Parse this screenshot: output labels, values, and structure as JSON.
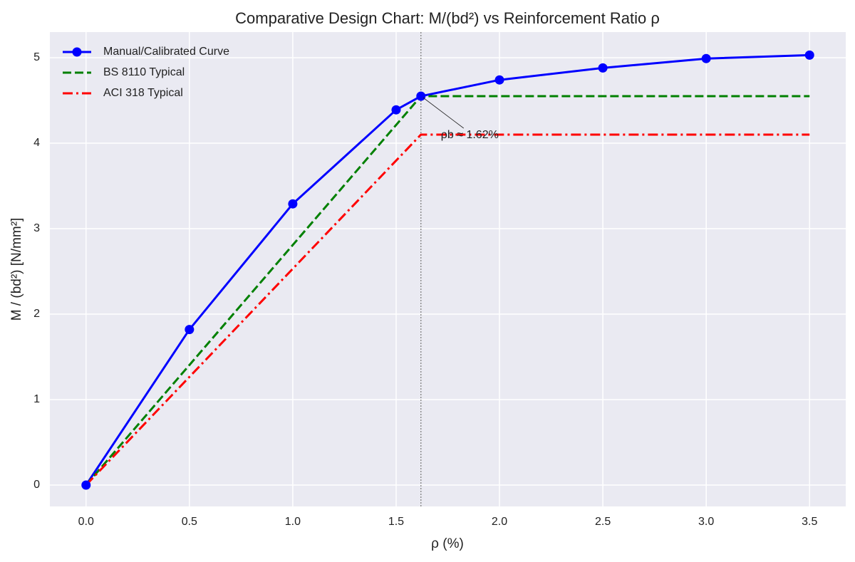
{
  "chart_data": {
    "type": "line",
    "title": "Comparative Design Chart: M/(bd²) vs Reinforcement Ratio ρ",
    "x_label": "ρ (%)",
    "y_label": "M / (bd²)  [N/mm²]",
    "series": [
      {
        "name": "Manual/Calibrated Curve",
        "color": "#0000ff",
        "linestyle": "solid",
        "marker": "o",
        "x": [
          0,
          0.5,
          1,
          1.5,
          1.62,
          2,
          2.5,
          3,
          3.5
        ],
        "values": [
          0,
          1.82,
          3.29,
          4.39,
          4.55,
          4.74,
          4.88,
          4.99,
          5.03
        ]
      },
      {
        "name": "BS 8110 Typical",
        "color": "#008000",
        "linestyle": "dashed",
        "x": [
          0,
          1.62,
          3.5
        ],
        "values": [
          0,
          4.55,
          4.55
        ]
      },
      {
        "name": "ACI 318 Typical",
        "color": "#ff0000",
        "linestyle": "dashdot",
        "x": [
          0,
          1.62,
          3.5
        ],
        "values": [
          0,
          4.1,
          4.1
        ]
      }
    ],
    "annotation": {
      "text": "ρb ≈ 1.62%",
      "x": 1.62,
      "y": 4.55
    },
    "xlim": [
      -0.175,
      3.675
    ],
    "ylim": [
      -0.25,
      5.3
    ],
    "xticks": [
      {
        "value": 0,
        "label": "0.0"
      },
      0.5,
      {
        "value": 1,
        "label": "1.0"
      },
      1.5,
      {
        "value": 2,
        "label": "2.0"
      },
      2.5,
      {
        "value": 3,
        "label": "3.0"
      },
      3.5
    ],
    "yticks": [
      0,
      1,
      2,
      3,
      4,
      5
    ],
    "grid": true,
    "legend": "upper left"
  }
}
